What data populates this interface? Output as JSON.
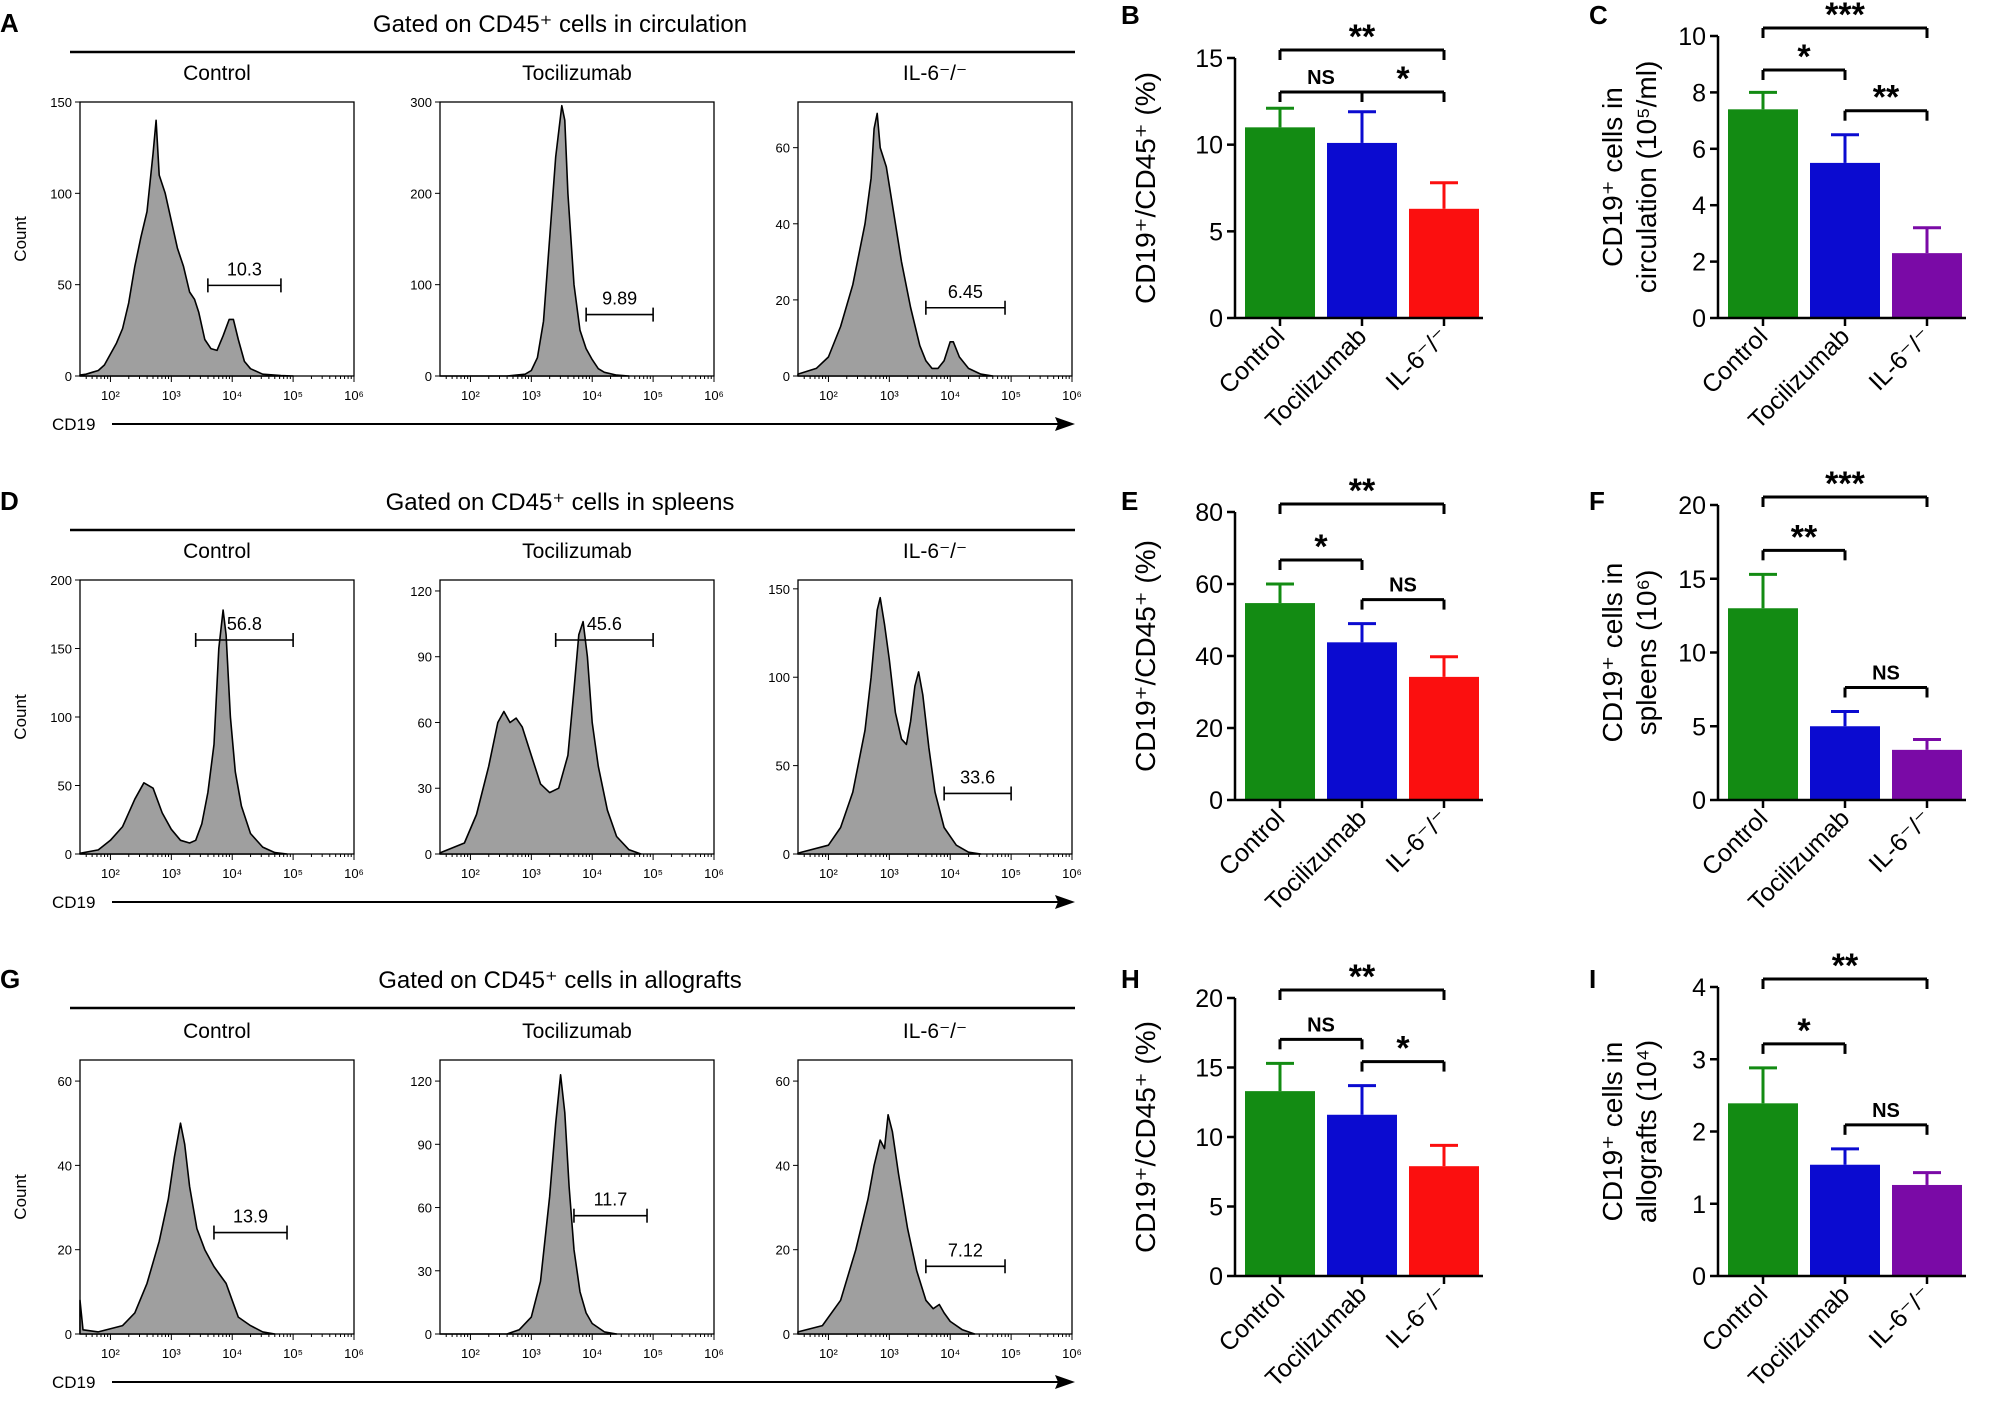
{
  "sections": [
    {
      "panel": "A",
      "gate_label": "Gated on CD45⁺ cells in circulation"
    },
    {
      "panel": "D",
      "gate_label": "Gated on CD45⁺ cells in spleens"
    },
    {
      "panel": "G",
      "gate_label": "Gated on CD45⁺ cells in allografts"
    }
  ],
  "colors": {
    "control": "#138b13",
    "tocilizumab": "#0b0bd0",
    "il6_red": "#fb0f0f",
    "il6_purple": "#7a0aa6",
    "histogram_fill": "#9f9f9f"
  },
  "chart_data": [
    {
      "panel": "A",
      "type": "histogram",
      "title": "Control",
      "xlabel": "CD19",
      "ylabel": "Count",
      "xscale": "log",
      "xlim_log10": [
        1.5,
        6
      ],
      "ylim": [
        0,
        150
      ],
      "yticks": [
        0,
        50,
        100,
        150
      ],
      "xtick_labels": [
        "10²",
        "10³",
        "10⁴",
        "10⁵",
        "10⁶"
      ],
      "gate": {
        "from_log10": 3.6,
        "to_log10": 4.8,
        "label": "10.3"
      },
      "profile": [
        [
          1.5,
          0.5
        ],
        [
          1.6,
          1
        ],
        [
          1.7,
          2
        ],
        [
          1.8,
          3
        ],
        [
          1.9,
          6
        ],
        [
          2.0,
          12
        ],
        [
          2.1,
          18
        ],
        [
          2.2,
          26
        ],
        [
          2.3,
          40
        ],
        [
          2.4,
          60
        ],
        [
          2.5,
          76
        ],
        [
          2.6,
          90
        ],
        [
          2.7,
          122
        ],
        [
          2.75,
          140
        ],
        [
          2.8,
          110
        ],
        [
          2.9,
          100
        ],
        [
          3.0,
          85
        ],
        [
          3.1,
          70
        ],
        [
          3.2,
          60
        ],
        [
          3.3,
          46
        ],
        [
          3.38,
          42
        ],
        [
          3.45,
          35
        ],
        [
          3.55,
          20
        ],
        [
          3.65,
          15
        ],
        [
          3.75,
          14
        ],
        [
          3.85,
          22
        ],
        [
          3.95,
          31
        ],
        [
          4.02,
          31
        ],
        [
          4.1,
          20
        ],
        [
          4.2,
          8
        ],
        [
          4.3,
          4
        ],
        [
          4.5,
          1
        ],
        [
          4.8,
          0.3
        ],
        [
          5.0,
          0
        ]
      ]
    },
    {
      "panel": "A",
      "type": "histogram",
      "title": "Tocilizumab",
      "xscale": "log",
      "xlim_log10": [
        1.5,
        6
      ],
      "ylim": [
        0,
        300
      ],
      "yticks": [
        0,
        100,
        200,
        300
      ],
      "xtick_labels": [
        "10²",
        "10³",
        "10⁴",
        "10⁵",
        "10⁶"
      ],
      "gate": {
        "from_log10": 3.9,
        "to_log10": 5.0,
        "label": "9.89"
      },
      "profile": [
        [
          1.5,
          0
        ],
        [
          2.6,
          0
        ],
        [
          2.9,
          2
        ],
        [
          3.0,
          6
        ],
        [
          3.1,
          20
        ],
        [
          3.2,
          60
        ],
        [
          3.3,
          150
        ],
        [
          3.4,
          240
        ],
        [
          3.5,
          296
        ],
        [
          3.55,
          280
        ],
        [
          3.6,
          200
        ],
        [
          3.7,
          100
        ],
        [
          3.8,
          50
        ],
        [
          3.9,
          30
        ],
        [
          4.0,
          18
        ],
        [
          4.1,
          8
        ],
        [
          4.2,
          4
        ],
        [
          4.4,
          1
        ],
        [
          4.6,
          0
        ]
      ]
    },
    {
      "panel": "A",
      "type": "histogram",
      "title": "IL-6⁻/⁻",
      "xscale": "log",
      "xlim_log10": [
        1.5,
        6
      ],
      "ylim": [
        0,
        72
      ],
      "yticks": [
        0,
        20,
        40,
        60
      ],
      "xtick_labels": [
        "10²",
        "10³",
        "10⁴",
        "10⁵",
        "10⁶"
      ],
      "gate": {
        "from_log10": 3.6,
        "to_log10": 4.9,
        "label": "6.45"
      },
      "profile": [
        [
          1.5,
          0.5
        ],
        [
          1.8,
          2
        ],
        [
          2.0,
          5
        ],
        [
          2.2,
          13
        ],
        [
          2.4,
          24
        ],
        [
          2.6,
          40
        ],
        [
          2.7,
          52
        ],
        [
          2.75,
          65
        ],
        [
          2.8,
          69
        ],
        [
          2.85,
          60
        ],
        [
          2.95,
          55
        ],
        [
          3.05,
          45
        ],
        [
          3.2,
          30
        ],
        [
          3.35,
          18
        ],
        [
          3.5,
          8
        ],
        [
          3.6,
          4
        ],
        [
          3.7,
          2
        ],
        [
          3.8,
          2
        ],
        [
          3.9,
          4
        ],
        [
          4.0,
          9
        ],
        [
          4.05,
          9
        ],
        [
          4.15,
          5
        ],
        [
          4.3,
          2
        ],
        [
          4.5,
          0.5
        ],
        [
          4.7,
          0
        ]
      ]
    },
    {
      "panel": "B",
      "type": "bar",
      "ylabel": "CD19⁺/CD45⁺ (%)",
      "categories": [
        "Control",
        "Tocilizumab",
        "IL-6⁻/⁻"
      ],
      "values": [
        11.0,
        10.1,
        6.3
      ],
      "errors": [
        1.1,
        1.8,
        1.5
      ],
      "ylim": [
        0,
        15
      ],
      "yticks": [
        0,
        5,
        10,
        15
      ],
      "significance": [
        {
          "from": 0,
          "to": 1,
          "label": "NS"
        },
        {
          "from": 1,
          "to": 2,
          "label": "*"
        },
        {
          "from": 0,
          "to": 2,
          "label": "**"
        }
      ]
    },
    {
      "panel": "C",
      "type": "bar",
      "ylabel": "CD19⁺ cells in circulation (10⁵/ml)",
      "categories": [
        "Control",
        "Tocilizumab",
        "IL-6⁻/⁻"
      ],
      "values": [
        7.4,
        5.5,
        2.3
      ],
      "errors": [
        0.6,
        1.0,
        0.9
      ],
      "ylim": [
        0,
        10
      ],
      "yticks": [
        0,
        2,
        4,
        6,
        8,
        10
      ],
      "significance": [
        {
          "from": 0,
          "to": 1,
          "label": "*"
        },
        {
          "from": 1,
          "to": 2,
          "label": "**"
        },
        {
          "from": 0,
          "to": 2,
          "label": "***"
        }
      ]
    },
    {
      "panel": "D",
      "type": "histogram",
      "title": "Control",
      "xlabel": "CD19",
      "ylabel": "Count",
      "xscale": "log",
      "xlim_log10": [
        1.5,
        6
      ],
      "ylim": [
        0,
        200
      ],
      "yticks": [
        0,
        50,
        100,
        150,
        200
      ],
      "xtick_labels": [
        "10²",
        "10³",
        "10⁴",
        "10⁵",
        "10⁶"
      ],
      "gate": {
        "from_log10": 3.4,
        "to_log10": 5.0,
        "label": "56.8"
      },
      "profile": [
        [
          1.5,
          0.5
        ],
        [
          1.8,
          3
        ],
        [
          2.0,
          10
        ],
        [
          2.2,
          20
        ],
        [
          2.4,
          40
        ],
        [
          2.55,
          52
        ],
        [
          2.7,
          48
        ],
        [
          2.85,
          30
        ],
        [
          3.0,
          18
        ],
        [
          3.15,
          10
        ],
        [
          3.3,
          8
        ],
        [
          3.4,
          10
        ],
        [
          3.5,
          22
        ],
        [
          3.6,
          45
        ],
        [
          3.7,
          80
        ],
        [
          3.78,
          150
        ],
        [
          3.85,
          178
        ],
        [
          3.9,
          160
        ],
        [
          3.97,
          100
        ],
        [
          4.05,
          60
        ],
        [
          4.15,
          35
        ],
        [
          4.3,
          15
        ],
        [
          4.5,
          5
        ],
        [
          4.7,
          1
        ],
        [
          4.9,
          0
        ]
      ]
    },
    {
      "panel": "D",
      "type": "histogram",
      "title": "Tocilizumab",
      "xscale": "log",
      "xlim_log10": [
        1.5,
        6
      ],
      "ylim": [
        0,
        125
      ],
      "yticks": [
        0,
        30,
        60,
        90,
        120
      ],
      "xtick_labels": [
        "10²",
        "10³",
        "10⁴",
        "10⁵",
        "10⁶"
      ],
      "gate": {
        "from_log10": 3.4,
        "to_log10": 5.0,
        "label": "45.6"
      },
      "profile": [
        [
          1.5,
          0.5
        ],
        [
          1.9,
          5
        ],
        [
          2.1,
          18
        ],
        [
          2.3,
          40
        ],
        [
          2.45,
          60
        ],
        [
          2.55,
          65
        ],
        [
          2.65,
          60
        ],
        [
          2.75,
          62
        ],
        [
          2.85,
          58
        ],
        [
          3.0,
          45
        ],
        [
          3.15,
          32
        ],
        [
          3.3,
          28
        ],
        [
          3.45,
          30
        ],
        [
          3.6,
          45
        ],
        [
          3.7,
          75
        ],
        [
          3.78,
          100
        ],
        [
          3.85,
          106
        ],
        [
          3.92,
          90
        ],
        [
          4.0,
          60
        ],
        [
          4.1,
          40
        ],
        [
          4.25,
          20
        ],
        [
          4.4,
          8
        ],
        [
          4.6,
          2
        ],
        [
          4.8,
          0
        ]
      ]
    },
    {
      "panel": "D",
      "type": "histogram",
      "title": "IL-6⁻/⁻",
      "xscale": "log",
      "xlim_log10": [
        1.5,
        6
      ],
      "ylim": [
        0,
        155
      ],
      "yticks": [
        0,
        50,
        100,
        150
      ],
      "xtick_labels": [
        "10²",
        "10³",
        "10⁴",
        "10⁵",
        "10⁶"
      ],
      "gate": {
        "from_log10": 3.9,
        "to_log10": 5.0,
        "label": "33.6"
      },
      "profile": [
        [
          1.5,
          0.5
        ],
        [
          2.0,
          5
        ],
        [
          2.2,
          15
        ],
        [
          2.4,
          35
        ],
        [
          2.6,
          70
        ],
        [
          2.7,
          100
        ],
        [
          2.8,
          138
        ],
        [
          2.85,
          145
        ],
        [
          2.92,
          130
        ],
        [
          3.0,
          110
        ],
        [
          3.1,
          80
        ],
        [
          3.2,
          65
        ],
        [
          3.28,
          62
        ],
        [
          3.35,
          75
        ],
        [
          3.42,
          95
        ],
        [
          3.48,
          103
        ],
        [
          3.55,
          90
        ],
        [
          3.65,
          60
        ],
        [
          3.75,
          35
        ],
        [
          3.9,
          15
        ],
        [
          4.1,
          5
        ],
        [
          4.3,
          1
        ],
        [
          4.5,
          0
        ]
      ]
    },
    {
      "panel": "E",
      "type": "bar",
      "ylabel": "CD19⁺/CD45⁺ (%)",
      "categories": [
        "Control",
        "Tocilizumab",
        "IL-6⁻/⁻"
      ],
      "values": [
        54.7,
        43.8,
        34.2
      ],
      "errors": [
        5.3,
        5.2,
        5.6
      ],
      "ylim": [
        0,
        80
      ],
      "yticks": [
        0,
        20,
        40,
        60,
        80
      ],
      "significance": [
        {
          "from": 0,
          "to": 1,
          "label": "*"
        },
        {
          "from": 1,
          "to": 2,
          "label": "NS"
        },
        {
          "from": 0,
          "to": 2,
          "label": "**"
        }
      ]
    },
    {
      "panel": "F",
      "type": "bar",
      "ylabel": "CD19⁺ cells in spleens (10⁶)",
      "categories": [
        "Control",
        "Tocilizumab",
        "IL-6⁻/⁻"
      ],
      "values": [
        13.0,
        5.0,
        3.4
      ],
      "errors": [
        2.3,
        1.0,
        0.7
      ],
      "ylim": [
        0,
        20
      ],
      "yticks": [
        0,
        5,
        10,
        15,
        20
      ],
      "significance": [
        {
          "from": 0,
          "to": 1,
          "label": "**"
        },
        {
          "from": 1,
          "to": 2,
          "label": "NS"
        },
        {
          "from": 0,
          "to": 2,
          "label": "***"
        }
      ]
    },
    {
      "panel": "G",
      "type": "histogram",
      "title": "Control",
      "xlabel": "CD19",
      "ylabel": "Count",
      "xscale": "log",
      "xlim_log10": [
        1.5,
        6
      ],
      "ylim": [
        0,
        65
      ],
      "yticks": [
        0,
        20,
        40,
        60
      ],
      "xtick_labels": [
        "10²",
        "10³",
        "10⁴",
        "10⁵",
        "10⁶"
      ],
      "gate": {
        "from_log10": 3.7,
        "to_log10": 4.9,
        "label": "13.9"
      },
      "profile": [
        [
          1.5,
          8
        ],
        [
          1.55,
          1
        ],
        [
          1.8,
          0.5
        ],
        [
          2.2,
          2
        ],
        [
          2.4,
          5
        ],
        [
          2.6,
          12
        ],
        [
          2.8,
          22
        ],
        [
          2.95,
          32
        ],
        [
          3.05,
          42
        ],
        [
          3.15,
          50
        ],
        [
          3.22,
          45
        ],
        [
          3.3,
          35
        ],
        [
          3.42,
          25
        ],
        [
          3.55,
          20
        ],
        [
          3.7,
          16
        ],
        [
          3.8,
          14
        ],
        [
          3.9,
          12
        ],
        [
          4.0,
          8
        ],
        [
          4.1,
          4
        ],
        [
          4.3,
          2
        ],
        [
          4.5,
          0.5
        ],
        [
          4.7,
          0
        ]
      ]
    },
    {
      "panel": "G",
      "type": "histogram",
      "title": "Tocilizumab",
      "xscale": "log",
      "xlim_log10": [
        1.5,
        6
      ],
      "ylim": [
        0,
        130
      ],
      "yticks": [
        0,
        30,
        60,
        90,
        120
      ],
      "xtick_labels": [
        "10²",
        "10³",
        "10⁴",
        "10⁵",
        "10⁶"
      ],
      "gate": {
        "from_log10": 3.7,
        "to_log10": 4.9,
        "label": "11.7"
      },
      "profile": [
        [
          1.5,
          0
        ],
        [
          2.6,
          0
        ],
        [
          2.8,
          2
        ],
        [
          3.0,
          8
        ],
        [
          3.15,
          25
        ],
        [
          3.3,
          65
        ],
        [
          3.4,
          100
        ],
        [
          3.48,
          123
        ],
        [
          3.55,
          105
        ],
        [
          3.62,
          70
        ],
        [
          3.7,
          40
        ],
        [
          3.8,
          20
        ],
        [
          3.9,
          10
        ],
        [
          4.0,
          5
        ],
        [
          4.2,
          1
        ],
        [
          4.4,
          0
        ]
      ]
    },
    {
      "panel": "G",
      "type": "histogram",
      "title": "IL-6⁻/⁻",
      "xscale": "log",
      "xlim_log10": [
        1.5,
        6
      ],
      "ylim": [
        0,
        65
      ],
      "yticks": [
        0,
        20,
        40,
        60
      ],
      "xtick_labels": [
        "10²",
        "10³",
        "10⁴",
        "10⁵",
        "10⁶"
      ],
      "gate": {
        "from_log10": 3.6,
        "to_log10": 4.9,
        "label": "7.12"
      },
      "profile": [
        [
          1.5,
          0.5
        ],
        [
          1.9,
          2
        ],
        [
          2.2,
          8
        ],
        [
          2.45,
          20
        ],
        [
          2.65,
          32
        ],
        [
          2.75,
          40
        ],
        [
          2.85,
          46
        ],
        [
          2.92,
          44
        ],
        [
          2.98,
          52
        ],
        [
          3.05,
          48
        ],
        [
          3.15,
          38
        ],
        [
          3.3,
          25
        ],
        [
          3.45,
          15
        ],
        [
          3.6,
          8
        ],
        [
          3.72,
          6
        ],
        [
          3.82,
          7
        ],
        [
          3.9,
          5
        ],
        [
          4.0,
          3
        ],
        [
          4.2,
          1
        ],
        [
          4.4,
          0
        ]
      ]
    },
    {
      "panel": "H",
      "type": "bar",
      "ylabel": "CD19⁺/CD45⁺ (%)",
      "categories": [
        "Control",
        "Tocilizumab",
        "IL-6⁻/⁻"
      ],
      "values": [
        13.3,
        11.6,
        7.9
      ],
      "errors": [
        2.0,
        2.1,
        1.5
      ],
      "ylim": [
        0,
        20
      ],
      "yticks": [
        0,
        5,
        10,
        15,
        20
      ],
      "significance": [
        {
          "from": 0,
          "to": 1,
          "label": "NS"
        },
        {
          "from": 1,
          "to": 2,
          "label": "*"
        },
        {
          "from": 0,
          "to": 2,
          "label": "**"
        }
      ]
    },
    {
      "panel": "I",
      "type": "bar",
      "ylabel": "CD19⁺ cells in allografts (10⁴)",
      "categories": [
        "Control",
        "Tocilizumab",
        "IL-6⁻/⁻"
      ],
      "values": [
        2.39,
        1.54,
        1.26
      ],
      "errors": [
        0.49,
        0.22,
        0.17
      ],
      "ylim": [
        0,
        4
      ],
      "yticks": [
        0,
        1,
        2,
        3,
        4
      ],
      "significance": [
        {
          "from": 0,
          "to": 1,
          "label": "*"
        },
        {
          "from": 1,
          "to": 2,
          "label": "NS"
        },
        {
          "from": 0,
          "to": 2,
          "label": "**"
        }
      ]
    }
  ]
}
